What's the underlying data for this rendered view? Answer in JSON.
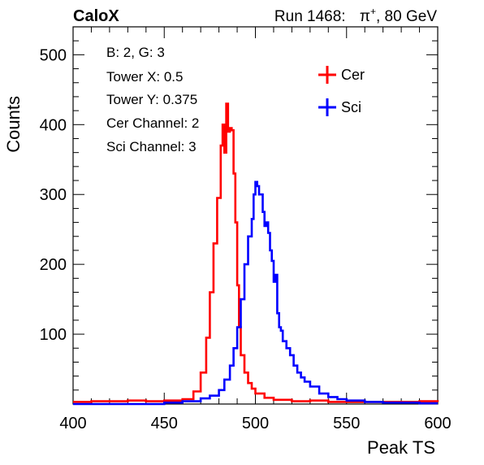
{
  "header": {
    "brand": "CaloX",
    "run_label": "Run 1468:",
    "particle": "π",
    "particle_charge": "+",
    "energy": ", 80 GeV"
  },
  "info_box": [
    "B: 2, G: 3",
    "Tower X: 0.5",
    "Tower Y: 0.375",
    "Cer Channel: 2",
    "Sci Channel: 3"
  ],
  "chart_data": {
    "type": "line",
    "step": true,
    "xlabel": "Peak TS",
    "ylabel": "Counts",
    "xlim": [
      400,
      600
    ],
    "ylim": [
      0,
      540
    ],
    "x_ticks": [
      400,
      450,
      500,
      550,
      600
    ],
    "y_ticks": [
      100,
      200,
      300,
      400,
      500
    ],
    "legend_position": "top-right",
    "series": [
      {
        "name": "Cer",
        "color": "#ff0000",
        "points": [
          [
            400,
            3
          ],
          [
            410,
            4
          ],
          [
            420,
            4
          ],
          [
            430,
            5
          ],
          [
            440,
            4
          ],
          [
            450,
            5
          ],
          [
            460,
            7
          ],
          [
            466,
            18
          ],
          [
            470,
            45
          ],
          [
            473,
            95
          ],
          [
            475,
            160
          ],
          [
            477,
            230
          ],
          [
            479,
            295
          ],
          [
            481,
            370
          ],
          [
            482,
            400
          ],
          [
            483,
            360
          ],
          [
            484,
            430
          ],
          [
            485,
            390
          ],
          [
            486,
            395
          ],
          [
            487,
            392
          ],
          [
            488,
            330
          ],
          [
            489,
            260
          ],
          [
            490,
            170
          ],
          [
            491,
            110
          ],
          [
            492,
            70
          ],
          [
            494,
            45
          ],
          [
            496,
            30
          ],
          [
            498,
            22
          ],
          [
            500,
            15
          ],
          [
            505,
            9
          ],
          [
            510,
            6
          ],
          [
            520,
            4
          ],
          [
            530,
            5
          ],
          [
            540,
            3
          ],
          [
            550,
            3
          ],
          [
            560,
            3
          ],
          [
            570,
            3
          ],
          [
            580,
            3
          ],
          [
            590,
            4
          ],
          [
            600,
            3
          ]
        ]
      },
      {
        "name": "Sci",
        "color": "#0000ff",
        "points": [
          [
            400,
            0
          ],
          [
            450,
            2
          ],
          [
            460,
            4
          ],
          [
            470,
            8
          ],
          [
            475,
            12
          ],
          [
            480,
            20
          ],
          [
            483,
            35
          ],
          [
            486,
            55
          ],
          [
            488,
            80
          ],
          [
            490,
            110
          ],
          [
            492,
            150
          ],
          [
            494,
            200
          ],
          [
            496,
            240
          ],
          [
            498,
            265
          ],
          [
            499,
            300
          ],
          [
            500,
            318
          ],
          [
            501,
            312
          ],
          [
            502,
            300
          ],
          [
            503,
            300
          ],
          [
            504,
            275
          ],
          [
            505,
            255
          ],
          [
            506,
            260
          ],
          [
            507,
            245
          ],
          [
            508,
            220
          ],
          [
            509,
            205
          ],
          [
            510,
            175
          ],
          [
            511,
            185
          ],
          [
            512,
            130
          ],
          [
            513,
            110
          ],
          [
            514,
            105
          ],
          [
            515,
            90
          ],
          [
            517,
            80
          ],
          [
            519,
            70
          ],
          [
            521,
            55
          ],
          [
            523,
            45
          ],
          [
            525,
            38
          ],
          [
            527,
            32
          ],
          [
            530,
            25
          ],
          [
            535,
            15
          ],
          [
            540,
            10
          ],
          [
            545,
            7
          ],
          [
            550,
            5
          ],
          [
            560,
            3
          ],
          [
            570,
            2
          ],
          [
            580,
            2
          ],
          [
            590,
            1
          ],
          [
            600,
            1
          ]
        ]
      }
    ]
  }
}
